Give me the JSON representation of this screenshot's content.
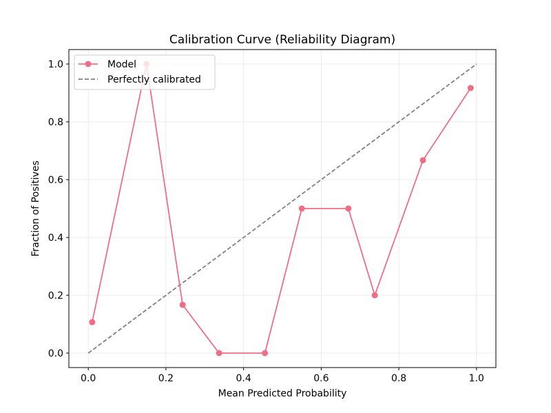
{
  "chart_data": {
    "type": "line",
    "title": "Calibration Curve (Reliability Diagram)",
    "xlabel": "Mean Predicted Probability",
    "ylabel": "Fraction of Positives",
    "xlim": [
      -0.05,
      1.05
    ],
    "ylim": [
      -0.05,
      1.05
    ],
    "xticks": [
      0.0,
      0.2,
      0.4,
      0.6,
      0.8,
      1.0
    ],
    "yticks": [
      0.0,
      0.2,
      0.4,
      0.6,
      0.8,
      1.0
    ],
    "xtick_labels": [
      "0.0",
      "0.2",
      "0.4",
      "0.6",
      "0.8",
      "1.0"
    ],
    "ytick_labels": [
      "0.0",
      "0.2",
      "0.4",
      "0.6",
      "0.8",
      "1.0"
    ],
    "grid": true,
    "legend_position": "top-left",
    "series": [
      {
        "name": "Model",
        "style": "solid-with-markers",
        "color": "#ee6e87",
        "x": [
          0.01,
          0.15,
          0.243,
          0.337,
          0.455,
          0.55,
          0.67,
          0.738,
          0.862,
          0.985
        ],
        "y": [
          0.107,
          1.0,
          0.167,
          0.0,
          0.0,
          0.5,
          0.5,
          0.2,
          0.667,
          0.917
        ]
      },
      {
        "name": "Perfectly calibrated",
        "style": "dashed",
        "color": "#808080",
        "x": [
          0.0,
          1.0
        ],
        "y": [
          0.0,
          1.0
        ]
      }
    ]
  }
}
